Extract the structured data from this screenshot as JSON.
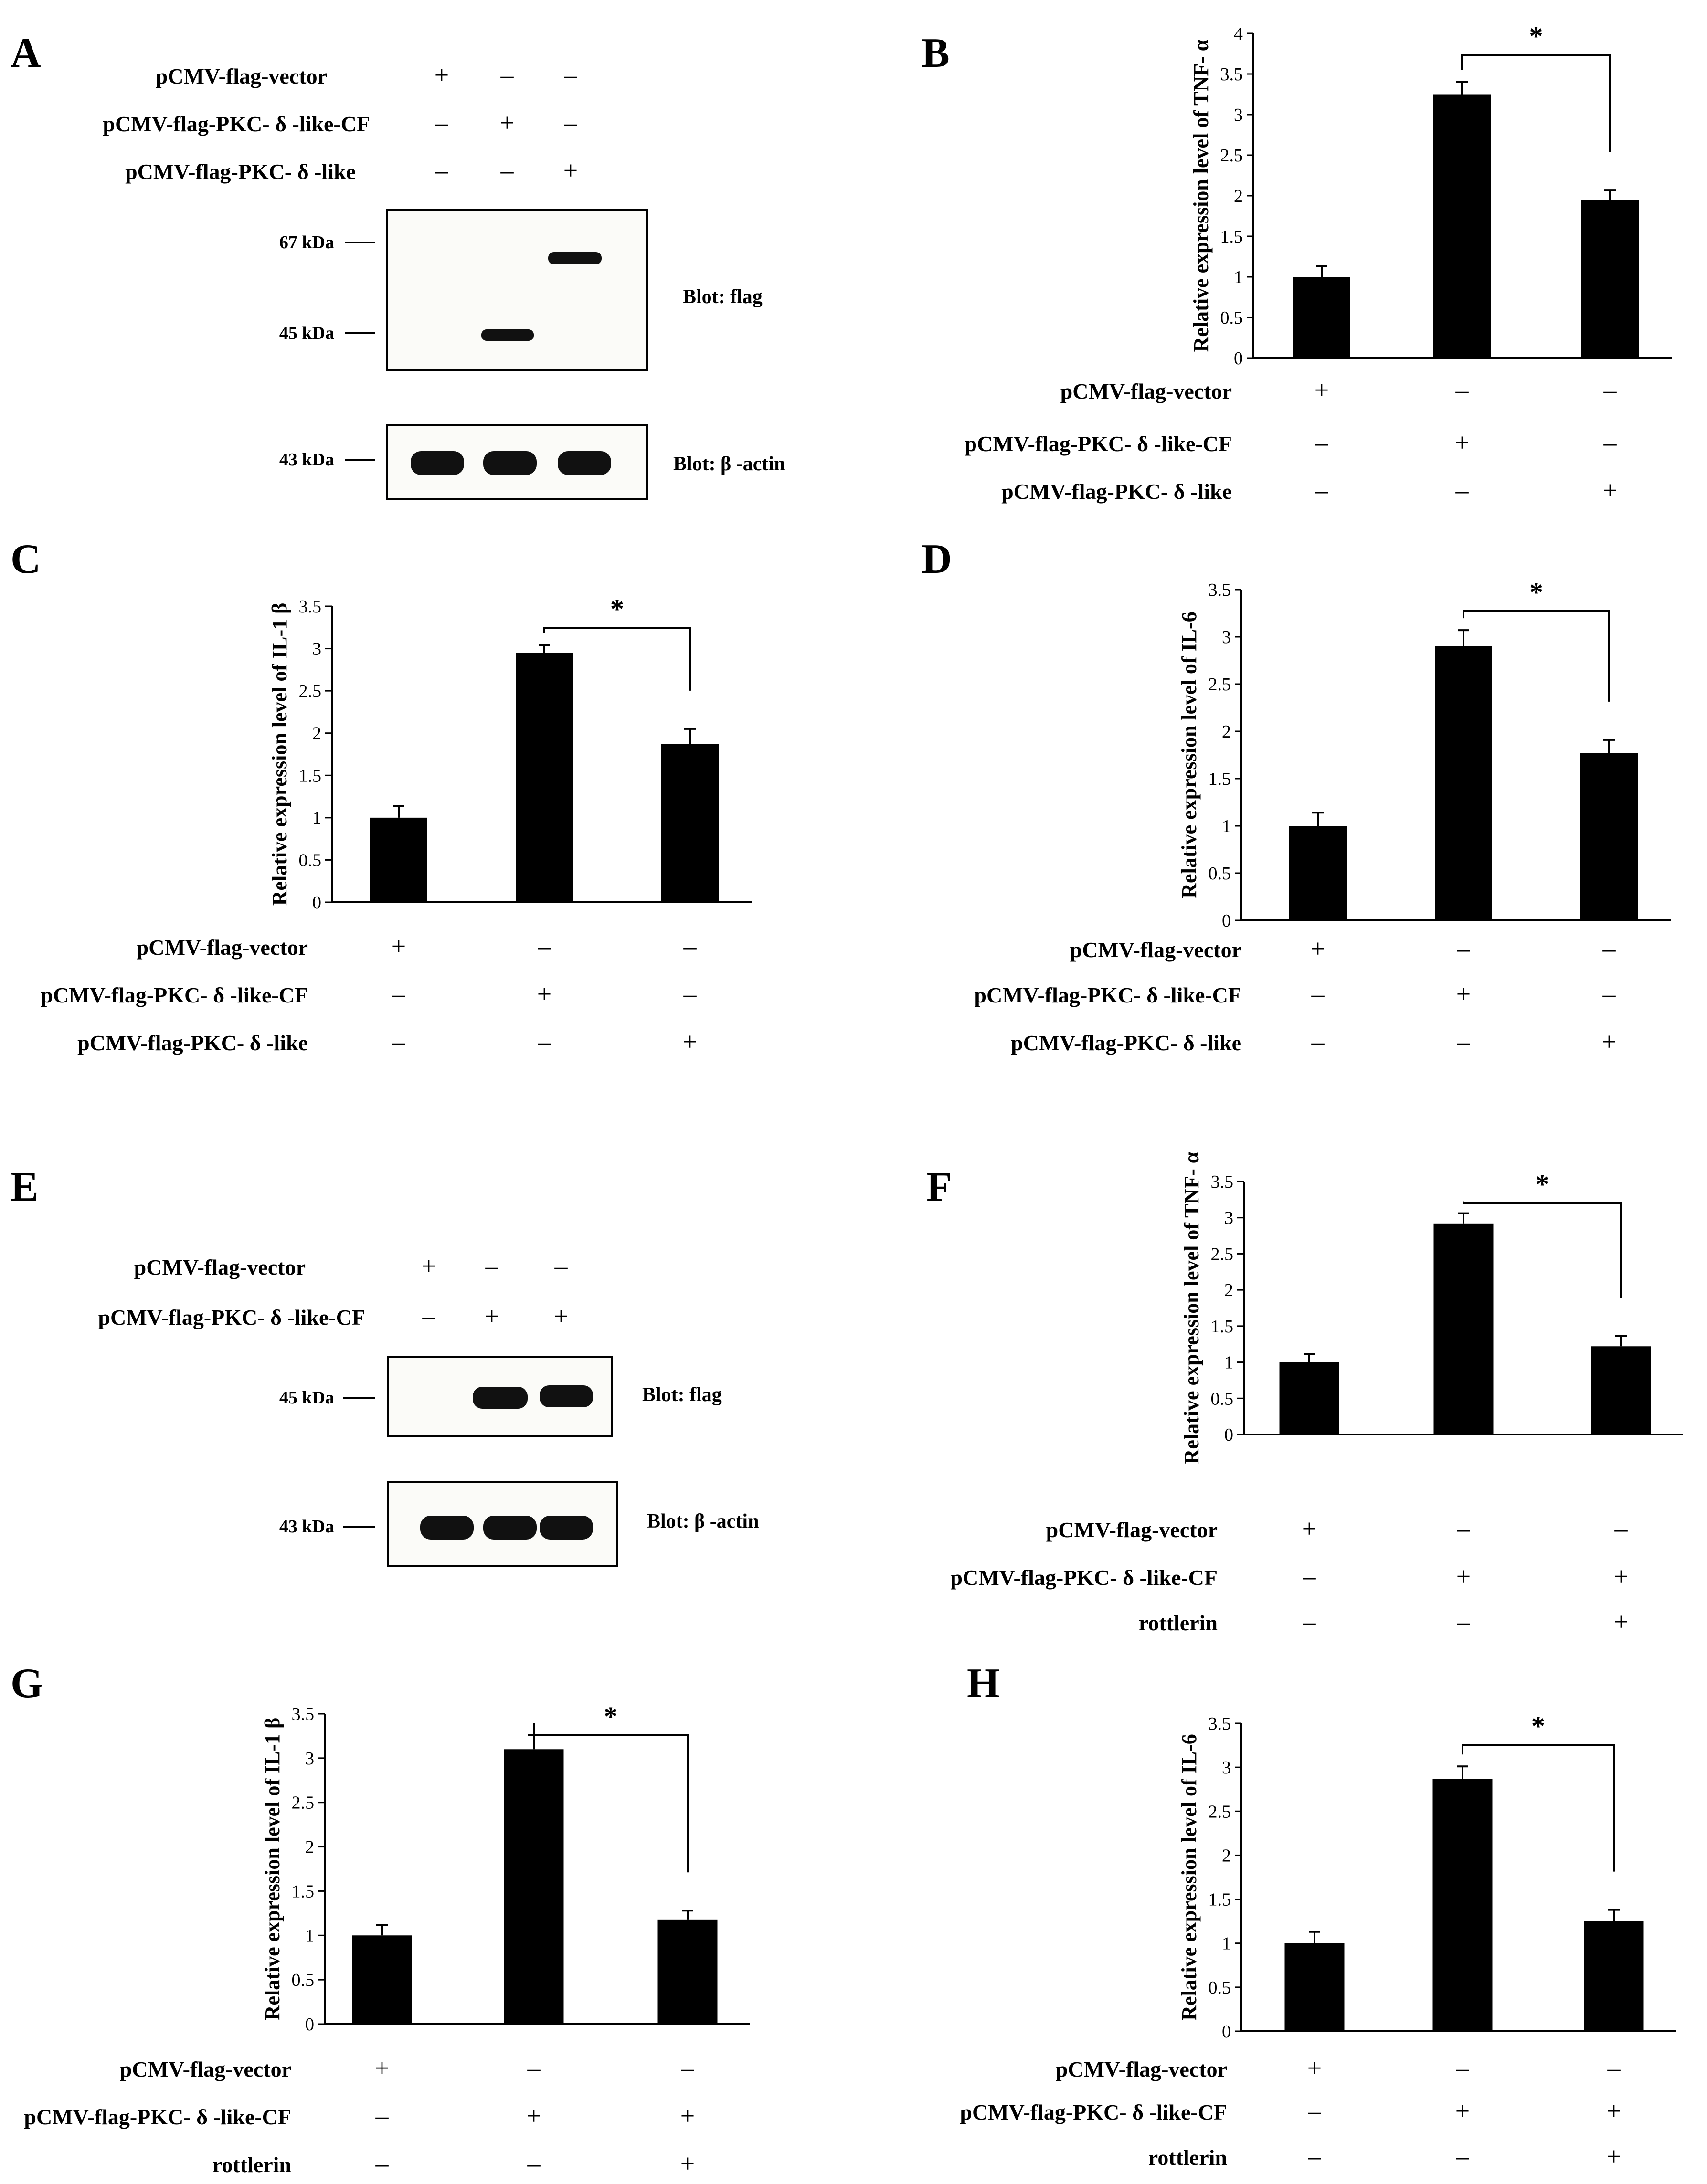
{
  "figure": {
    "panels": {
      "A": {
        "letter": "A",
        "conditions": [
          {
            "label": "pCMV-flag-vector",
            "signs": [
              "+",
              "–",
              "–"
            ]
          },
          {
            "label": "pCMV-flag-PKC- δ -like-CF",
            "signs": [
              "–",
              "+",
              "–"
            ]
          },
          {
            "label": "pCMV-flag-PKC- δ -like",
            "signs": [
              "–",
              "–",
              "+"
            ]
          }
        ],
        "blots": [
          {
            "name": "Blot: flag",
            "markers": [
              "67 kDa",
              "45 kDa"
            ]
          },
          {
            "name": "Blot: β -actin",
            "markers": [
              "43 kDa"
            ]
          }
        ]
      },
      "E": {
        "letter": "E",
        "conditions": [
          {
            "label": "pCMV-flag-vector",
            "signs": [
              "+",
              "–",
              "–"
            ]
          },
          {
            "label": "pCMV-flag-PKC- δ -like-CF",
            "signs": [
              "–",
              "+",
              "+"
            ]
          }
        ],
        "blots": [
          {
            "name": "Blot: flag",
            "markers": [
              "45 kDa"
            ]
          },
          {
            "name": "Blot: β -actin",
            "markers": [
              "43 kDa"
            ]
          }
        ]
      }
    },
    "significance": "*"
  },
  "chart_data": [
    {
      "panel": "B",
      "type": "bar",
      "ylabel": "Relative expression level of TNF- α",
      "ylim": [
        0,
        4
      ],
      "yticks": [
        0,
        0.5,
        1,
        1.5,
        2,
        2.5,
        3,
        3.5,
        4
      ],
      "categories": [
        "1",
        "2",
        "3"
      ],
      "values": [
        1.0,
        3.25,
        1.95
      ],
      "errors": [
        0.13,
        0.15,
        0.12
      ],
      "significance": {
        "between": [
          1,
          2
        ],
        "label": "*"
      },
      "conditions": [
        {
          "label": "pCMV-flag-vector",
          "signs": [
            "+",
            "–",
            "–"
          ]
        },
        {
          "label": "pCMV-flag-PKC- δ -like-CF",
          "signs": [
            "–",
            "+",
            "–"
          ]
        },
        {
          "label": "pCMV-flag-PKC- δ -like",
          "signs": [
            "–",
            "–",
            "+"
          ]
        }
      ]
    },
    {
      "panel": "C",
      "type": "bar",
      "ylabel": "Relative expression level of IL-1 β",
      "ylim": [
        0,
        3.5
      ],
      "yticks": [
        0,
        0.5,
        1,
        1.5,
        2,
        2.5,
        3,
        3.5
      ],
      "categories": [
        "1",
        "2",
        "3"
      ],
      "values": [
        1.0,
        2.95,
        1.87
      ],
      "errors": [
        0.14,
        0.09,
        0.18
      ],
      "significance": {
        "between": [
          1,
          2
        ],
        "label": "*"
      },
      "conditions": [
        {
          "label": "pCMV-flag-vector",
          "signs": [
            "+",
            "–",
            "–"
          ]
        },
        {
          "label": "pCMV-flag-PKC- δ -like-CF",
          "signs": [
            "–",
            "+",
            "–"
          ]
        },
        {
          "label": "pCMV-flag-PKC- δ -like",
          "signs": [
            "–",
            "–",
            "+"
          ]
        }
      ]
    },
    {
      "panel": "D",
      "type": "bar",
      "ylabel": "Relative expression level of IL-6",
      "ylim": [
        0,
        3.5
      ],
      "yticks": [
        0,
        0.5,
        1,
        1.5,
        2,
        2.5,
        3,
        3.5
      ],
      "categories": [
        "1",
        "2",
        "3"
      ],
      "values": [
        1.0,
        2.9,
        1.77
      ],
      "errors": [
        0.14,
        0.17,
        0.14
      ],
      "significance": {
        "between": [
          1,
          2
        ],
        "label": "*"
      },
      "conditions": [
        {
          "label": "pCMV-flag-vector",
          "signs": [
            "+",
            "–",
            "–"
          ]
        },
        {
          "label": "pCMV-flag-PKC- δ -like-CF",
          "signs": [
            "–",
            "+",
            "–"
          ]
        },
        {
          "label": "pCMV-flag-PKC- δ -like",
          "signs": [
            "–",
            "–",
            "+"
          ]
        }
      ]
    },
    {
      "panel": "F",
      "type": "bar",
      "ylabel": "Relative expression level of TNF- α",
      "ylim": [
        0,
        3.5
      ],
      "yticks": [
        0,
        0.5,
        1,
        1.5,
        2,
        2.5,
        3,
        3.5
      ],
      "categories": [
        "1",
        "2",
        "3"
      ],
      "values": [
        1.0,
        2.92,
        1.22
      ],
      "errors": [
        0.11,
        0.14,
        0.14
      ],
      "significance": {
        "between": [
          1,
          2
        ],
        "label": "*"
      },
      "conditions": [
        {
          "label": "pCMV-flag-vector",
          "signs": [
            "+",
            "–",
            "–"
          ]
        },
        {
          "label": "pCMV-flag-PKC- δ -like-CF",
          "signs": [
            "–",
            "+",
            "+"
          ]
        },
        {
          "label": "rottlerin",
          "signs": [
            "–",
            "–",
            "+"
          ]
        }
      ]
    },
    {
      "panel": "G",
      "type": "bar",
      "ylabel": "Relative expression level of IL-1 β",
      "ylim": [
        0,
        3.5
      ],
      "yticks": [
        0,
        0.5,
        1,
        1.5,
        2,
        2.5,
        3,
        3.5
      ],
      "categories": [
        "1",
        "2",
        "3"
      ],
      "values": [
        1.0,
        3.1,
        1.18
      ],
      "errors": [
        0.12,
        0.16,
        0.1
      ],
      "significance": {
        "between": [
          1,
          2
        ],
        "label": "*"
      },
      "conditions": [
        {
          "label": "pCMV-flag-vector",
          "signs": [
            "+",
            "–",
            "–"
          ]
        },
        {
          "label": "pCMV-flag-PKC- δ -like-CF",
          "signs": [
            "–",
            "+",
            "+"
          ]
        },
        {
          "label": "rottlerin",
          "signs": [
            "–",
            "–",
            "+"
          ]
        }
      ]
    },
    {
      "panel": "H",
      "type": "bar",
      "ylabel": "Relative expression level of IL-6",
      "ylim": [
        0,
        3.5
      ],
      "yticks": [
        0,
        0.5,
        1,
        1.5,
        2,
        2.5,
        3,
        3.5
      ],
      "categories": [
        "1",
        "2",
        "3"
      ],
      "values": [
        1.0,
        2.87,
        1.25
      ],
      "errors": [
        0.13,
        0.14,
        0.13
      ],
      "significance": {
        "between": [
          1,
          2
        ],
        "label": "*"
      },
      "conditions": [
        {
          "label": "pCMV-flag-vector",
          "signs": [
            "+",
            "–",
            "–"
          ]
        },
        {
          "label": "pCMV-flag-PKC- δ -like-CF",
          "signs": [
            "–",
            "+",
            "+"
          ]
        },
        {
          "label": "rottlerin",
          "signs": [
            "–",
            "–",
            "+"
          ]
        }
      ]
    }
  ]
}
